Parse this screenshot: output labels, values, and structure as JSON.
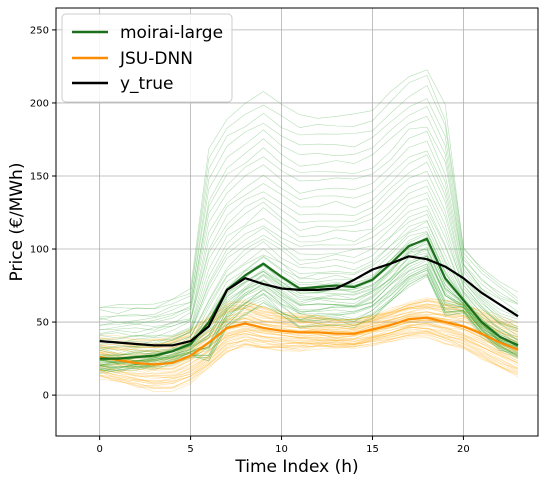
{
  "chart_data": {
    "type": "line",
    "xlabel": "Time Index (h)",
    "ylabel": "Price (€/MWh)",
    "xlim": [
      -2.4,
      24.1
    ],
    "ylim": [
      -28,
      265
    ],
    "xticks": [
      0,
      5,
      10,
      15,
      20
    ],
    "yticks": [
      0,
      50,
      100,
      150,
      200,
      250
    ],
    "grid": true,
    "legend_position": "top-left",
    "x": [
      0,
      1,
      2,
      3,
      4,
      5,
      6,
      7,
      8,
      9,
      10,
      11,
      12,
      13,
      14,
      15,
      16,
      17,
      18,
      19,
      20,
      21,
      22,
      23
    ],
    "series": [
      {
        "name": "moirai-large",
        "color": "#1b6e1b",
        "values": [
          25,
          25,
          26,
          27,
          30,
          35,
          50,
          72,
          82,
          90,
          81,
          73,
          74,
          75,
          74,
          79,
          90,
          102,
          107,
          80,
          65,
          50,
          40,
          34
        ]
      },
      {
        "name": "JSU-DNN",
        "color": "#ff8c00",
        "values": [
          26,
          24,
          22,
          21,
          22,
          27,
          36,
          46,
          49,
          46,
          44,
          43,
          43,
          42,
          42,
          45,
          48,
          52,
          53,
          50,
          47,
          42,
          36,
          31
        ]
      },
      {
        "name": "y_true",
        "color": "#000000",
        "values": [
          37,
          36,
          35,
          34,
          34,
          37,
          47,
          72,
          80,
          76,
          73,
          72,
          72,
          73,
          79,
          86,
          90,
          95,
          93,
          88,
          80,
          70,
          62,
          54
        ]
      }
    ]
  },
  "legend": {
    "items": [
      {
        "label": "moirai-large",
        "color": "#1b6e1b"
      },
      {
        "label": "JSU-DNN",
        "color": "#ff8c00"
      },
      {
        "label": "y_true",
        "color": "#000000"
      }
    ]
  },
  "colors": {
    "moirai_samples": "#2ca02c",
    "jsu_samples": "#ffa500"
  }
}
